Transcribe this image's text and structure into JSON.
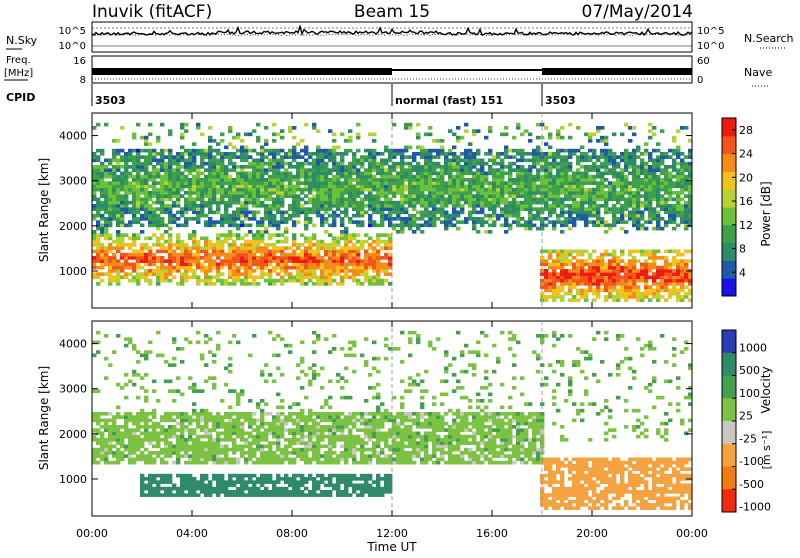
{
  "header": {
    "title": "Inuvik (fitACF)",
    "beam": "Beam 15",
    "date": "07/May/2014"
  },
  "status_panel": {
    "nsky_label": "N.Sky",
    "nsearch_label": "N.Search",
    "noise_ticks": [
      "10^5",
      "10^0"
    ],
    "freq_label_line1": "Freq.",
    "freq_label_line2": "[MHz]",
    "freq_ticks": [
      "16",
      "8"
    ],
    "nave_label": "Nave",
    "nave_ticks": [
      "60",
      "0"
    ],
    "cpid_label": "CPID",
    "cpid_segments": [
      {
        "text": "3503",
        "start_hour": 0
      },
      {
        "text": "normal (fast) 151",
        "start_hour": 12
      },
      {
        "text": "3503",
        "start_hour": 18
      }
    ]
  },
  "chart_data": [
    {
      "type": "heatmap",
      "name": "power",
      "ylabel": "Slant Range [km]",
      "xlim_hours": [
        0,
        24
      ],
      "ylim": [
        180,
        4500
      ],
      "yticks": [
        1000,
        2000,
        3000,
        4000
      ],
      "colorbar": {
        "label": "Power [dB]",
        "ticks": [
          28,
          24,
          20,
          16,
          12,
          8,
          4
        ],
        "range": [
          0,
          30
        ],
        "colors": [
          "#1a10ee",
          "#1e5aa8",
          "#2e8b68",
          "#3fa04a",
          "#6bc23a",
          "#b8d235",
          "#f2c21f",
          "#f58c1a",
          "#f2561a",
          "#ee1a14"
        ]
      },
      "features": [
        {
          "label": "main echo band",
          "hour_start": 0,
          "hour_end": 12,
          "range_km": [
            700,
            1800
          ],
          "power_db": 26
        },
        {
          "label": "main echo band",
          "hour_start": 18,
          "hour_end": 24,
          "range_km": [
            300,
            1500
          ],
          "power_db": 28
        },
        {
          "label": "upper scatter",
          "hour_start": 0,
          "hour_end": 24,
          "range_km": [
            2000,
            3700
          ],
          "power_db": 12
        }
      ]
    },
    {
      "type": "heatmap",
      "name": "velocity",
      "ylabel": "Slant Range [km]",
      "xlabel": "Time UT",
      "xlim_hours": [
        0,
        24
      ],
      "ylim": [
        180,
        4500
      ],
      "yticks": [
        1000,
        2000,
        3000,
        4000
      ],
      "colorbar": {
        "label": "Velocity",
        "units": "[m s⁻¹]",
        "ticks": [
          "1000",
          "500",
          "100",
          "25",
          "-25",
          "-100",
          "-500",
          "-1000"
        ],
        "colors": [
          "#2a3cb8",
          "#2f8a6a",
          "#44a050",
          "#7cc243",
          "#c8c8c0",
          "#f4a340",
          "#f07c12",
          "#ee2a12"
        ]
      },
      "features": [
        {
          "label": "ground scatter",
          "hour_start": 0,
          "hour_end": 18,
          "range_km": [
            1300,
            2500
          ],
          "velocity": 0
        },
        {
          "label": "positive velocity band",
          "hour_start": 2,
          "hour_end": 12,
          "range_km": [
            600,
            1100
          ],
          "velocity": 150
        },
        {
          "label": "negative velocity band",
          "hour_start": 18,
          "hour_end": 24,
          "range_km": [
            300,
            1500
          ],
          "velocity": -300
        }
      ],
      "xticks": [
        "00:00",
        "04:00",
        "08:00",
        "12:00",
        "16:00",
        "20:00",
        "00:00"
      ]
    }
  ]
}
